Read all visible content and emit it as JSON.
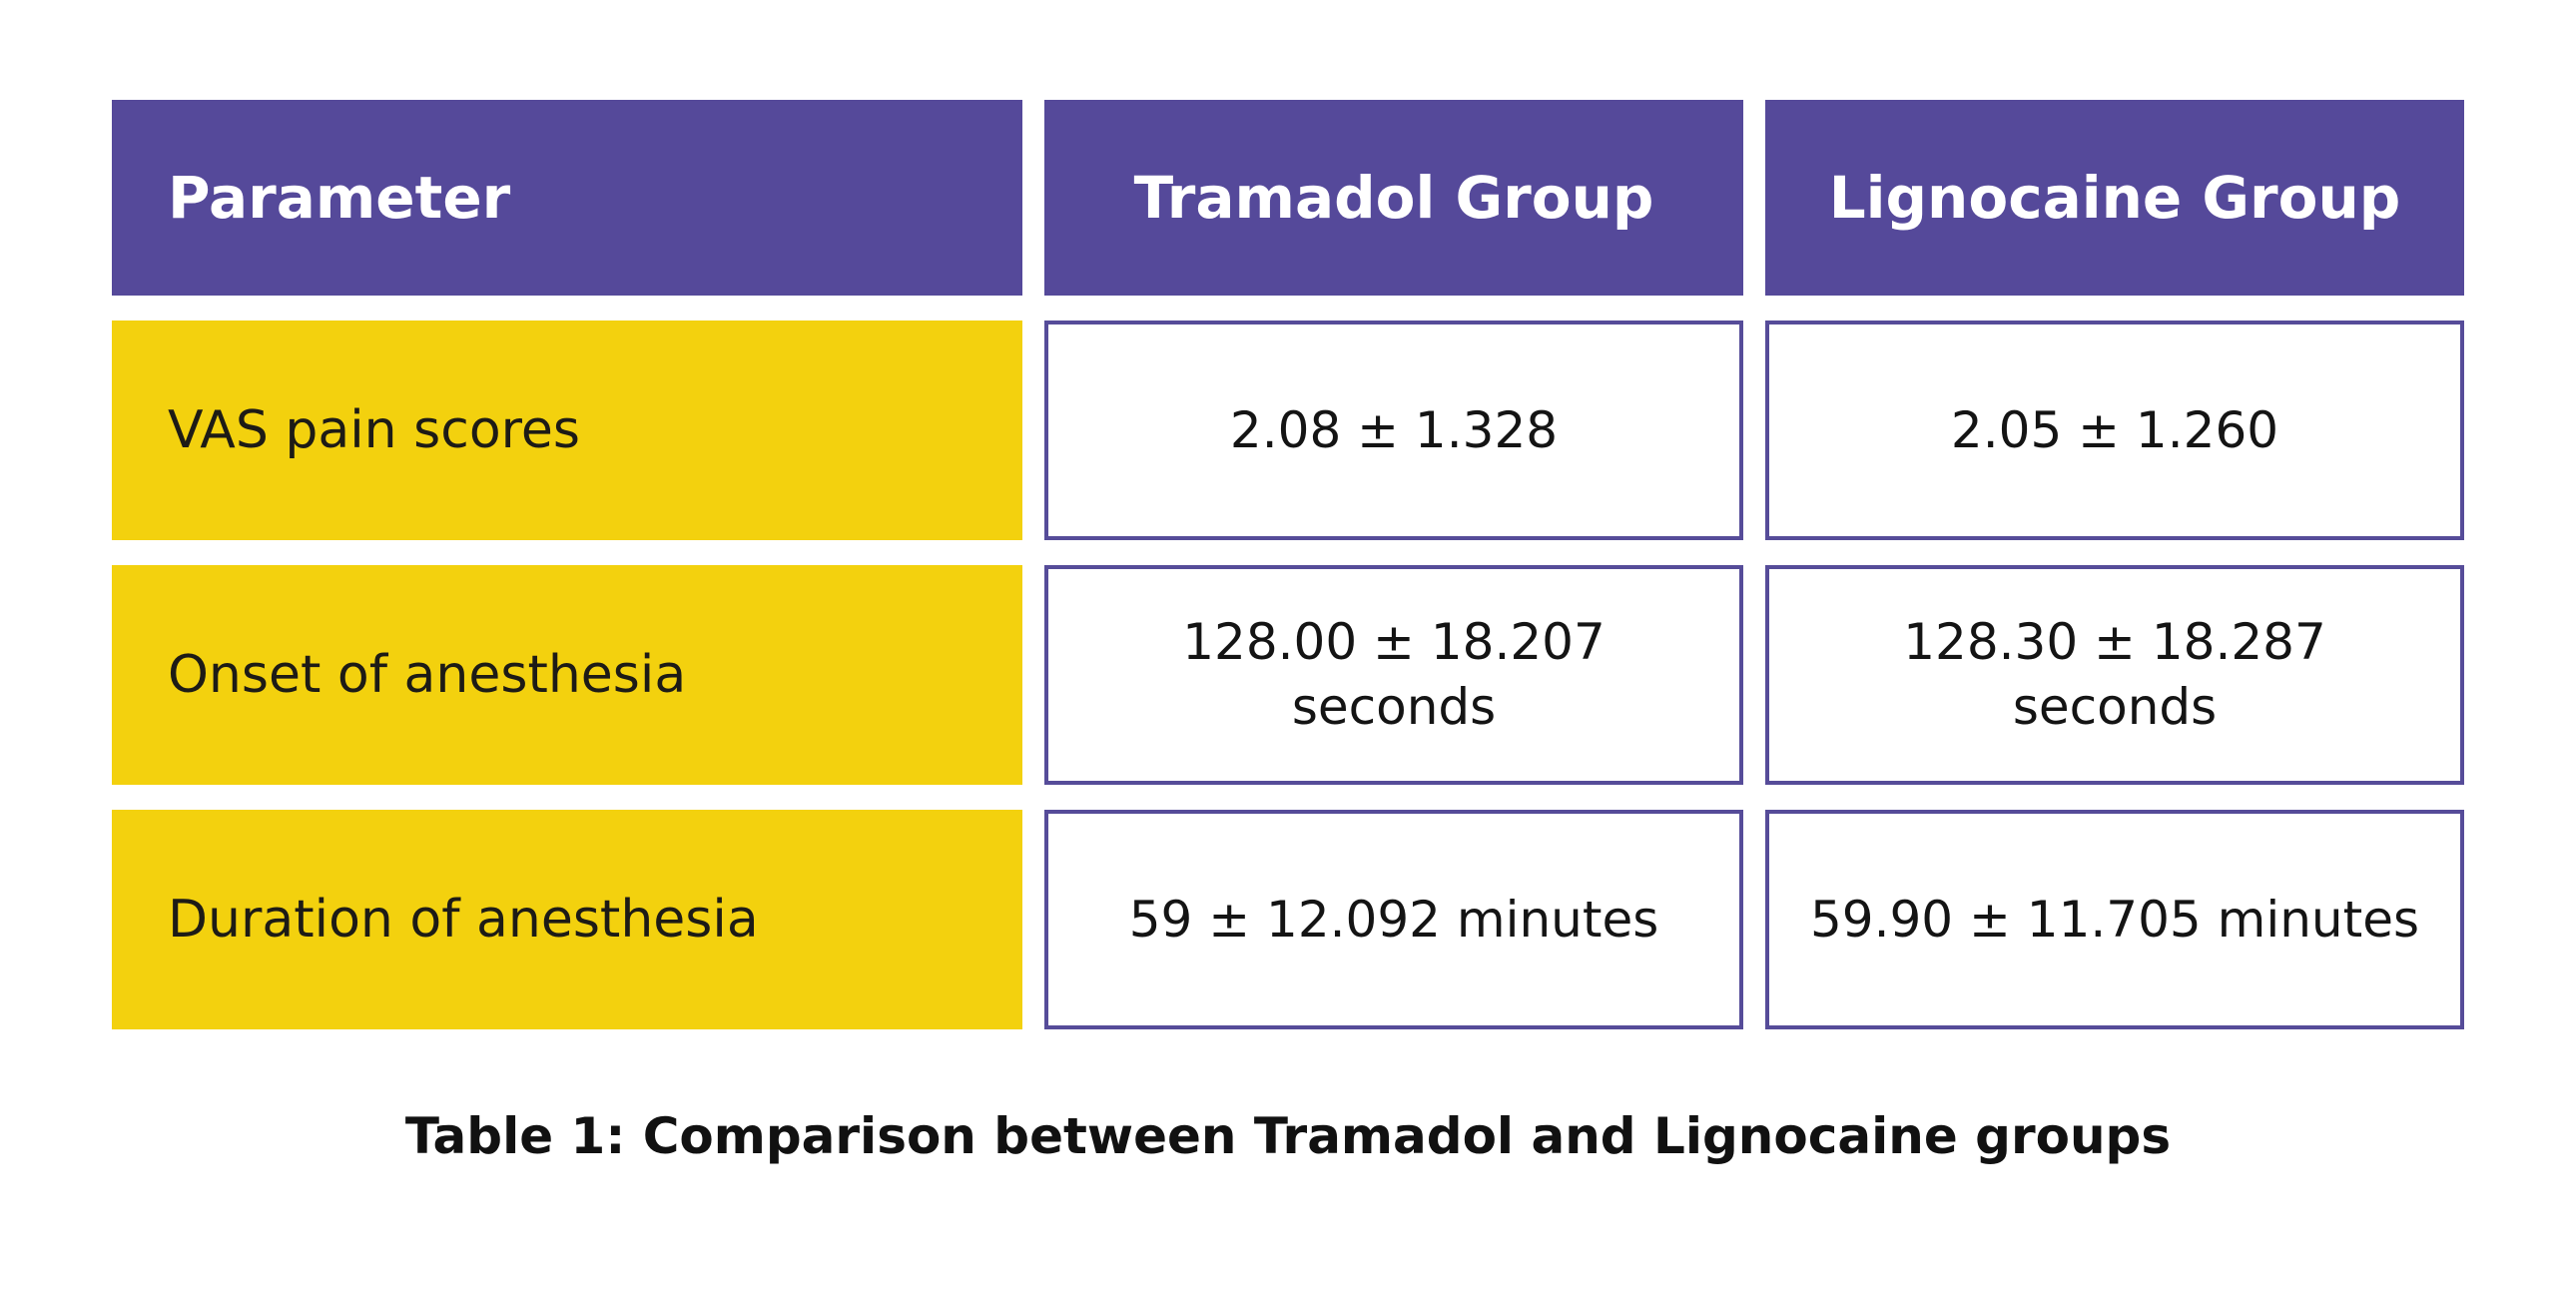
{
  "table": {
    "header": {
      "parameter": "Parameter",
      "tramadol": "Tramadol Group",
      "lignocaine": "Lignocaine Group"
    },
    "rows": [
      {
        "parameter": "VAS pain scores",
        "tramadol": "2.08 ± 1.328",
        "lignocaine": "2.05 ± 1.260"
      },
      {
        "parameter": "Onset of anesthesia",
        "tramadol": "128.00 ± 18.207\nseconds",
        "lignocaine": "128.30 ± 18.287\nseconds"
      },
      {
        "parameter": "Duration of anesthesia",
        "tramadol": "59 ± 12.092 minutes",
        "lignocaine": "59.90 ± 11.705 minutes"
      }
    ],
    "caption": "Table 1: Comparison between Tramadol and Lignocaine groups"
  },
  "chart_data": {
    "type": "table",
    "columns": [
      "Parameter",
      "Tramadol Group",
      "Lignocaine Group"
    ],
    "rows": [
      [
        "VAS pain scores",
        "2.08 ± 1.328",
        "2.05 ± 1.260"
      ],
      [
        "Onset of anesthesia",
        "128.00 ± 18.207 seconds",
        "128.30 ± 18.287 seconds"
      ],
      [
        "Duration of anesthesia",
        "59 ± 12.092 minutes",
        "59.90 ± 11.705 minutes"
      ]
    ],
    "title": "Table 1: Comparison between Tramadol and Lignocaine groups"
  },
  "colors": {
    "header_bg": "#55499a",
    "param_bg": "#f3d10e",
    "cell_border": "#564c99",
    "header_text": "#ffffff",
    "body_text": "#1d1b16",
    "value_text": "#141414",
    "caption_text": "#111111",
    "background": "#ffffff"
  }
}
